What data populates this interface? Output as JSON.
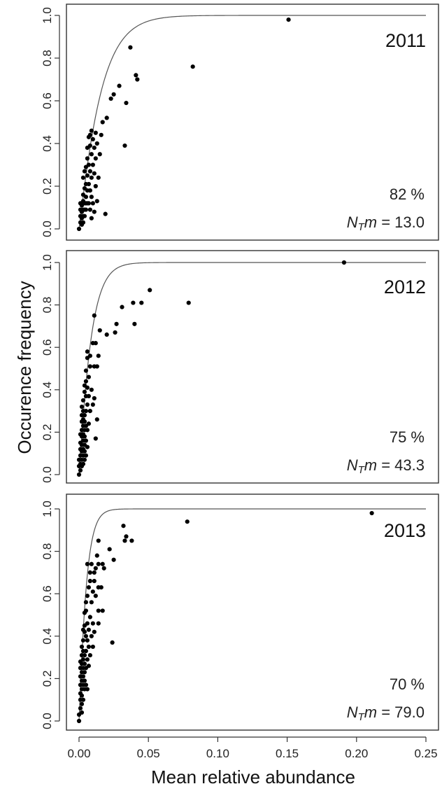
{
  "chart_data": [
    {
      "type": "scatter",
      "year": "2011",
      "percent": "82 %",
      "ntm_value": "13.0",
      "xlim": [
        0,
        0.25
      ],
      "ylim": [
        0,
        1.0
      ],
      "points": [
        [
          0.0,
          0.0
        ],
        [
          0.001,
          0.03
        ],
        [
          0.001,
          0.06
        ],
        [
          0.001,
          0.09
        ],
        [
          0.001,
          0.12
        ],
        [
          0.002,
          0.02
        ],
        [
          0.002,
          0.05
        ],
        [
          0.002,
          0.08
        ],
        [
          0.002,
          0.11
        ],
        [
          0.003,
          0.03
        ],
        [
          0.003,
          0.06
        ],
        [
          0.003,
          0.09
        ],
        [
          0.003,
          0.13
        ],
        [
          0.003,
          0.16
        ],
        [
          0.003,
          0.24
        ],
        [
          0.004,
          0.06
        ],
        [
          0.004,
          0.09
        ],
        [
          0.004,
          0.12
        ],
        [
          0.004,
          0.19
        ],
        [
          0.004,
          0.27
        ],
        [
          0.005,
          0.09
        ],
        [
          0.005,
          0.12
        ],
        [
          0.005,
          0.15
        ],
        [
          0.005,
          0.21
        ],
        [
          0.005,
          0.29
        ],
        [
          0.006,
          0.12
        ],
        [
          0.006,
          0.18
        ],
        [
          0.006,
          0.25
        ],
        [
          0.006,
          0.33
        ],
        [
          0.006,
          0.38
        ],
        [
          0.007,
          0.12
        ],
        [
          0.007,
          0.21
        ],
        [
          0.007,
          0.3
        ],
        [
          0.007,
          0.43
        ],
        [
          0.008,
          0.09
        ],
        [
          0.008,
          0.18
        ],
        [
          0.008,
          0.27
        ],
        [
          0.008,
          0.39
        ],
        [
          0.008,
          0.44
        ],
        [
          0.009,
          0.15
        ],
        [
          0.009,
          0.24
        ],
        [
          0.009,
          0.35
        ],
        [
          0.009,
          0.46
        ],
        [
          0.009,
          0.05
        ],
        [
          0.01,
          0.12
        ],
        [
          0.01,
          0.3
        ],
        [
          0.01,
          0.42
        ],
        [
          0.011,
          0.08
        ],
        [
          0.011,
          0.26
        ],
        [
          0.011,
          0.38
        ],
        [
          0.012,
          0.2
        ],
        [
          0.012,
          0.33
        ],
        [
          0.012,
          0.45
        ],
        [
          0.013,
          0.13
        ],
        [
          0.013,
          0.4
        ],
        [
          0.014,
          0.24
        ],
        [
          0.015,
          0.35
        ],
        [
          0.016,
          0.44
        ],
        [
          0.017,
          0.5
        ],
        [
          0.019,
          0.07
        ],
        [
          0.02,
          0.52
        ],
        [
          0.023,
          0.61
        ],
        [
          0.025,
          0.63
        ],
        [
          0.029,
          0.67
        ],
        [
          0.033,
          0.39
        ],
        [
          0.034,
          0.59
        ],
        [
          0.037,
          0.85
        ],
        [
          0.041,
          0.72
        ],
        [
          0.042,
          0.7
        ],
        [
          0.082,
          0.76
        ],
        [
          0.151,
          0.98
        ]
      ],
      "curve": {
        "m": 0.0155
      }
    },
    {
      "type": "scatter",
      "year": "2012",
      "percent": "75 %",
      "ntm_value": "43.3",
      "xlim": [
        0,
        0.25
      ],
      "ylim": [
        0,
        1.0
      ],
      "points": [
        [
          0.0,
          0.0
        ],
        [
          0.0,
          0.04
        ],
        [
          0.0,
          0.07
        ],
        [
          0.001,
          0.02
        ],
        [
          0.001,
          0.05
        ],
        [
          0.001,
          0.09
        ],
        [
          0.001,
          0.12
        ],
        [
          0.001,
          0.15
        ],
        [
          0.001,
          0.19
        ],
        [
          0.002,
          0.04
        ],
        [
          0.002,
          0.07
        ],
        [
          0.002,
          0.11
        ],
        [
          0.002,
          0.14
        ],
        [
          0.002,
          0.18
        ],
        [
          0.002,
          0.21
        ],
        [
          0.002,
          0.25
        ],
        [
          0.002,
          0.28
        ],
        [
          0.002,
          0.32
        ],
        [
          0.003,
          0.05
        ],
        [
          0.003,
          0.09
        ],
        [
          0.003,
          0.12
        ],
        [
          0.003,
          0.16
        ],
        [
          0.003,
          0.19
        ],
        [
          0.003,
          0.23
        ],
        [
          0.003,
          0.26
        ],
        [
          0.003,
          0.3
        ],
        [
          0.003,
          0.35
        ],
        [
          0.004,
          0.07
        ],
        [
          0.004,
          0.11
        ],
        [
          0.004,
          0.14
        ],
        [
          0.004,
          0.18
        ],
        [
          0.004,
          0.21
        ],
        [
          0.004,
          0.25
        ],
        [
          0.004,
          0.28
        ],
        [
          0.004,
          0.39
        ],
        [
          0.004,
          0.42
        ],
        [
          0.005,
          0.09
        ],
        [
          0.005,
          0.16
        ],
        [
          0.005,
          0.23
        ],
        [
          0.005,
          0.3
        ],
        [
          0.005,
          0.37
        ],
        [
          0.005,
          0.44
        ],
        [
          0.005,
          0.49
        ],
        [
          0.006,
          0.13
        ],
        [
          0.006,
          0.21
        ],
        [
          0.006,
          0.33
        ],
        [
          0.006,
          0.41
        ],
        [
          0.006,
          0.55
        ],
        [
          0.006,
          0.58
        ],
        [
          0.007,
          0.24
        ],
        [
          0.007,
          0.37
        ],
        [
          0.007,
          0.46
        ],
        [
          0.008,
          0.3
        ],
        [
          0.008,
          0.51
        ],
        [
          0.008,
          0.56
        ],
        [
          0.009,
          0.4
        ],
        [
          0.01,
          0.33
        ],
        [
          0.01,
          0.62
        ],
        [
          0.011,
          0.36
        ],
        [
          0.011,
          0.51
        ],
        [
          0.011,
          0.75
        ],
        [
          0.012,
          0.17
        ],
        [
          0.012,
          0.62
        ],
        [
          0.013,
          0.26
        ],
        [
          0.013,
          0.51
        ],
        [
          0.014,
          0.56
        ],
        [
          0.015,
          0.68
        ],
        [
          0.02,
          0.66
        ],
        [
          0.026,
          0.67
        ],
        [
          0.027,
          0.71
        ],
        [
          0.031,
          0.79
        ],
        [
          0.039,
          0.81
        ],
        [
          0.04,
          0.71
        ],
        [
          0.045,
          0.81
        ],
        [
          0.051,
          0.87
        ],
        [
          0.079,
          0.81
        ],
        [
          0.191,
          1.0
        ]
      ],
      "curve": {
        "m": 0.0085
      }
    },
    {
      "type": "scatter",
      "year": "2013",
      "percent": "70 %",
      "ntm_value": "79.0",
      "xlim": [
        0,
        0.25
      ],
      "ylim": [
        0,
        1.0
      ],
      "points": [
        [
          0.0,
          0.0
        ],
        [
          0.0,
          0.03
        ],
        [
          0.001,
          0.06
        ],
        [
          0.001,
          0.1
        ],
        [
          0.001,
          0.13
        ],
        [
          0.001,
          0.17
        ],
        [
          0.001,
          0.21
        ],
        [
          0.001,
          0.25
        ],
        [
          0.001,
          0.28
        ],
        [
          0.002,
          0.04
        ],
        [
          0.002,
          0.08
        ],
        [
          0.002,
          0.12
        ],
        [
          0.002,
          0.15
        ],
        [
          0.002,
          0.19
        ],
        [
          0.002,
          0.23
        ],
        [
          0.002,
          0.27
        ],
        [
          0.002,
          0.31
        ],
        [
          0.002,
          0.35
        ],
        [
          0.003,
          0.1
        ],
        [
          0.003,
          0.17
        ],
        [
          0.003,
          0.21
        ],
        [
          0.003,
          0.25
        ],
        [
          0.003,
          0.29
        ],
        [
          0.003,
          0.33
        ],
        [
          0.003,
          0.38
        ],
        [
          0.003,
          0.43
        ],
        [
          0.004,
          0.15
        ],
        [
          0.004,
          0.19
        ],
        [
          0.004,
          0.23
        ],
        [
          0.004,
          0.27
        ],
        [
          0.004,
          0.31
        ],
        [
          0.004,
          0.42
        ],
        [
          0.004,
          0.45
        ],
        [
          0.004,
          0.51
        ],
        [
          0.005,
          0.17
        ],
        [
          0.005,
          0.25
        ],
        [
          0.005,
          0.33
        ],
        [
          0.005,
          0.4
        ],
        [
          0.005,
          0.52
        ],
        [
          0.005,
          0.56
        ],
        [
          0.006,
          0.15
        ],
        [
          0.006,
          0.29
        ],
        [
          0.006,
          0.38
        ],
        [
          0.006,
          0.46
        ],
        [
          0.006,
          0.59
        ],
        [
          0.006,
          0.74
        ],
        [
          0.007,
          0.26
        ],
        [
          0.007,
          0.35
        ],
        [
          0.007,
          0.43
        ],
        [
          0.007,
          0.63
        ],
        [
          0.008,
          0.31
        ],
        [
          0.008,
          0.49
        ],
        [
          0.008,
          0.66
        ],
        [
          0.008,
          0.7
        ],
        [
          0.009,
          0.4
        ],
        [
          0.009,
          0.56
        ],
        [
          0.009,
          0.74
        ],
        [
          0.01,
          0.35
        ],
        [
          0.01,
          0.46
        ],
        [
          0.01,
          0.61
        ],
        [
          0.011,
          0.42
        ],
        [
          0.011,
          0.66
        ],
        [
          0.011,
          0.7
        ],
        [
          0.012,
          0.59
        ],
        [
          0.012,
          0.72
        ],
        [
          0.013,
          0.78
        ],
        [
          0.014,
          0.46
        ],
        [
          0.014,
          0.52
        ],
        [
          0.014,
          0.63
        ],
        [
          0.014,
          0.74
        ],
        [
          0.014,
          0.85
        ],
        [
          0.016,
          0.63
        ],
        [
          0.017,
          0.52
        ],
        [
          0.017,
          0.74
        ],
        [
          0.018,
          0.72
        ],
        [
          0.022,
          0.81
        ],
        [
          0.024,
          0.37
        ],
        [
          0.025,
          0.76
        ],
        [
          0.032,
          0.92
        ],
        [
          0.033,
          0.85
        ],
        [
          0.034,
          0.87
        ],
        [
          0.038,
          0.85
        ],
        [
          0.078,
          0.94
        ],
        [
          0.211,
          0.98
        ]
      ],
      "curve": {
        "m": 0.0052
      }
    }
  ],
  "x_ticks": [
    "0.00",
    "0.05",
    "0.10",
    "0.15",
    "0.20",
    "0.25"
  ],
  "y_ticks": [
    "0.0",
    "0.2",
    "0.4",
    "0.6",
    "0.8",
    "1.0"
  ],
  "xlabel": "Mean relative abundance",
  "ylabel": "Occurence frequency",
  "ntm_prefix": "N",
  "ntm_sub": "T",
  "ntm_m": "m",
  "ntm_equals": " = "
}
